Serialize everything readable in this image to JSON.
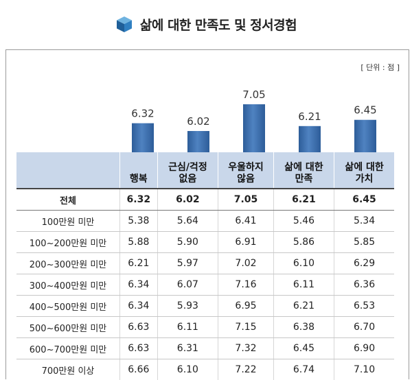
{
  "title": "삶에 대한 만족도 및 정서경험",
  "unit_label": "[ 단위 : 점 ]",
  "colors": {
    "bar": "#4f82c1",
    "bar_dark": "#2d5d99",
    "header_bg": "#c9d7ea"
  },
  "chart_data": {
    "type": "bar",
    "categories": [
      "행복",
      "근심/걱정 없음",
      "우울하지 않음",
      "삶에 대한 만족",
      "삶에 대한 가치"
    ],
    "values": [
      6.32,
      6.02,
      7.05,
      6.21,
      6.45
    ],
    "value_labels": [
      "6.32",
      "6.02",
      "7.05",
      "6.21",
      "6.45"
    ],
    "ylim": [
      5.2,
      7.5
    ]
  },
  "table": {
    "columns": [
      {
        "line1": "행복",
        "line2": ""
      },
      {
        "line1": "근심/걱정",
        "line2": "없음"
      },
      {
        "line1": "우울하지",
        "line2": "않음"
      },
      {
        "line1": "삶에 대한",
        "line2": "만족"
      },
      {
        "line1": "삶에 대한",
        "line2": "가치"
      }
    ],
    "rows": [
      {
        "label": "전체",
        "values": [
          "6.32",
          "6.02",
          "7.05",
          "6.21",
          "6.45"
        ]
      },
      {
        "label": "100만원 미만",
        "values": [
          "5.38",
          "5.64",
          "6.41",
          "5.46",
          "5.34"
        ]
      },
      {
        "label": "100~200만원 미만",
        "values": [
          "5.88",
          "5.90",
          "6.91",
          "5.86",
          "5.85"
        ]
      },
      {
        "label": "200~300만원 미만",
        "values": [
          "6.21",
          "5.97",
          "7.02",
          "6.10",
          "6.29"
        ]
      },
      {
        "label": "300~400만원 미만",
        "values": [
          "6.34",
          "6.07",
          "7.16",
          "6.11",
          "6.36"
        ]
      },
      {
        "label": "400~500만원 미만",
        "values": [
          "6.34",
          "5.93",
          "6.95",
          "6.21",
          "6.53"
        ]
      },
      {
        "label": "500~600만원 미만",
        "values": [
          "6.63",
          "6.11",
          "7.15",
          "6.38",
          "6.70"
        ]
      },
      {
        "label": "600~700만원 미만",
        "values": [
          "6.63",
          "6.31",
          "7.32",
          "6.45",
          "6.90"
        ]
      },
      {
        "label": "700만원 이상",
        "values": [
          "6.66",
          "6.10",
          "7.22",
          "6.74",
          "7.10"
        ]
      }
    ]
  }
}
